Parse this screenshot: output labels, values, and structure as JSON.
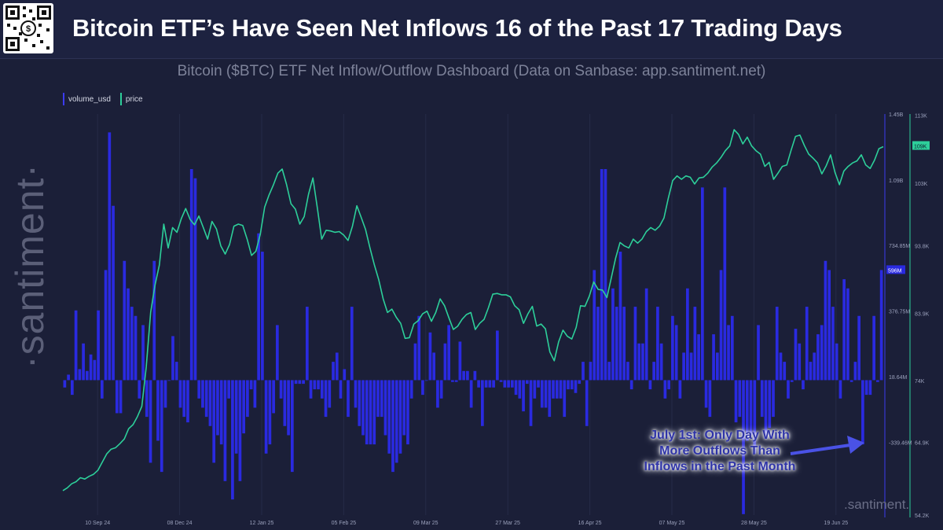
{
  "header": {
    "title": "Bitcoin ETF’s Have Seen Net Inflows 16 of the Past 17 Trading Days",
    "qr_icon": "qr-code-icon"
  },
  "subtitle": "Bitcoin ($BTC) ETF Net Inflow/Outflow Dashboard (Data on Sanbase: app.santiment.net)",
  "watermark": {
    "side": "·santiment·",
    "bottom": ".santiment."
  },
  "annotation": {
    "lines": [
      "July 1st: Only Day With",
      "More Outflows Than",
      "Inflows in the Past Month"
    ]
  },
  "chart_data": {
    "type": "bar",
    "title": "Bitcoin ($BTC) ETF Net Inflow/Outflow Dashboard",
    "colors": {
      "bars": "#2a2ae0",
      "price": "#2dcf9a",
      "background": "#1b1f38"
    },
    "legend": [
      {
        "name": "volume_usd",
        "color": "#3b3bf0"
      },
      {
        "name": "price",
        "color": "#2dcf9a"
      }
    ],
    "x_ticks": [
      "10 Sep 24",
      "08 Dec 24",
      "12 Jan 25",
      "05 Feb 25",
      "09 Mar 25",
      "27 Mar 25",
      "16 Apr 25",
      "07 May 25",
      "28 May 25",
      "19 Jun 25"
    ],
    "y_left": {
      "label": "volume_usd",
      "ticks": [
        1450000000,
        1090000000,
        734850000,
        376750000,
        18640000,
        -339460000
      ],
      "tick_labels": [
        "1.45B",
        "1.09B",
        "734.85M",
        "376.75M",
        "18.64M",
        "-339.46M"
      ],
      "ylim": [
        -735000000,
        1450000000
      ],
      "current_label": "596M"
    },
    "y_right": {
      "label": "price",
      "ticks": [
        113000,
        103000,
        93800,
        83900,
        74000,
        64900,
        54200
      ],
      "tick_labels": [
        "113K",
        "103K",
        "93.8K",
        "83.9K",
        "74K",
        "64.9K",
        "54.2K"
      ],
      "ylim": [
        54200,
        113200
      ],
      "current_label": "109K"
    },
    "series": [
      {
        "name": "volume_usd",
        "values": [
          -40,
          30,
          -80,
          380,
          60,
          200,
          50,
          140,
          110,
          380,
          -100,
          600,
          1350,
          950,
          -180,
          -180,
          650,
          500,
          400,
          350,
          -100,
          300,
          -200,
          -450,
          650,
          -330,
          -500,
          -150,
          0,
          240,
          100,
          -150,
          -200,
          -230,
          1150,
          1100,
          -100,
          -150,
          -200,
          -250,
          -450,
          -300,
          -350,
          -550,
          -100,
          -650,
          -400,
          -550,
          -290,
          -200,
          -50,
          -150,
          800,
          700,
          -400,
          -350,
          -180,
          300,
          -100,
          -250,
          -300,
          -500,
          -20,
          -20,
          -20,
          400,
          -100,
          -50,
          -50,
          -100,
          -200,
          -150,
          100,
          150,
          -100,
          60,
          -200,
          400,
          -150,
          -250,
          -300,
          -350,
          -350,
          -350,
          -200,
          -200,
          -300,
          -400,
          -500,
          -450,
          -400,
          -300,
          -350,
          -100,
          200,
          350,
          -80,
          0,
          260,
          150,
          -150,
          -100,
          200,
          300,
          -10,
          -10,
          210,
          50,
          50,
          -150,
          50,
          -40,
          -250,
          -40,
          -40,
          -40,
          270,
          -10,
          -40,
          -40,
          -40,
          -80,
          -100,
          -170,
          -20,
          -250,
          -100,
          -40,
          -150,
          -150,
          -200,
          -100,
          -100,
          -100,
          -200,
          -50,
          -50,
          -70,
          -20,
          100,
          -250,
          100,
          600,
          400,
          1150,
          1150,
          100,
          500,
          400,
          700,
          400,
          100,
          -50,
          400,
          200,
          200,
          500,
          -50,
          100,
          400,
          200,
          -100,
          -50,
          350,
          300,
          -100,
          150,
          500,
          150,
          400,
          250,
          1050,
          -150,
          -200,
          250,
          150,
          600,
          1050,
          300,
          350,
          -230,
          -200,
          -730,
          -330,
          -300,
          -400,
          300,
          -200,
          -320,
          -260,
          -200,
          400,
          150,
          100,
          -100,
          -10,
          280,
          200,
          -50,
          400,
          100,
          150,
          250,
          300,
          650,
          600,
          400,
          200,
          -100,
          550,
          500,
          -10,
          100,
          350,
          -350,
          -80,
          -80,
          350,
          -10,
          600
        ]
      },
      {
        "name": "price",
        "values": [
          57800,
          58200,
          58800,
          59100,
          59700,
          59500,
          59900,
          60200,
          60800,
          62000,
          63200,
          63900,
          64100,
          64700,
          65400,
          66900,
          67500,
          68700,
          70200,
          76000,
          84000,
          88000,
          91000,
          97000,
          93500,
          96500,
          95800,
          97800,
          99300,
          97700,
          96900,
          98200,
          96500,
          94800,
          97400,
          96300,
          93800,
          92600,
          94000,
          96700,
          97000,
          96800,
          94800,
          92400,
          93000,
          95500,
          99500,
          101300,
          102800,
          104500,
          105100,
          102800,
          100000,
          99200,
          97000,
          98100,
          101400,
          103800,
          99400,
          94800,
          96100,
          96000,
          95800,
          95900,
          95400,
          94600,
          96700,
          99700,
          98000,
          96200,
          93500,
          91000,
          88800,
          86000,
          84000,
          84500,
          83300,
          82400,
          80200,
          80300,
          82300,
          82800,
          83800,
          84200,
          82700,
          84000,
          86000,
          85000,
          83200,
          81500,
          82000,
          83000,
          83700,
          84000,
          81500,
          82400,
          83000,
          84700,
          86700,
          86800,
          86600,
          86600,
          86300,
          85000,
          84400,
          82400,
          83800,
          84900,
          82000,
          82300,
          81600,
          78200,
          76900,
          79700,
          81400,
          80500,
          80100,
          81800,
          85000,
          84900,
          86400,
          88500,
          87400,
          87300,
          86200,
          89100,
          92000,
          94300,
          93800,
          93500,
          94800,
          94200,
          94800,
          95900,
          96500,
          96100,
          96700,
          97900,
          100800,
          103400,
          104100,
          103600,
          104100,
          103900,
          102900,
          103800,
          103900,
          104500,
          105400,
          106000,
          106800,
          107800,
          108500,
          110900,
          110200,
          108800,
          109800,
          108500,
          107800,
          107300,
          105500,
          106100,
          103600,
          104500,
          105500,
          105700,
          107900,
          109900,
          110100,
          108600,
          107300,
          106700,
          106000,
          104400,
          105600,
          107200,
          104600,
          102800,
          104800,
          105500,
          106000,
          106300,
          107200,
          105700,
          105200,
          106400,
          108100,
          108400
        ]
      }
    ]
  }
}
